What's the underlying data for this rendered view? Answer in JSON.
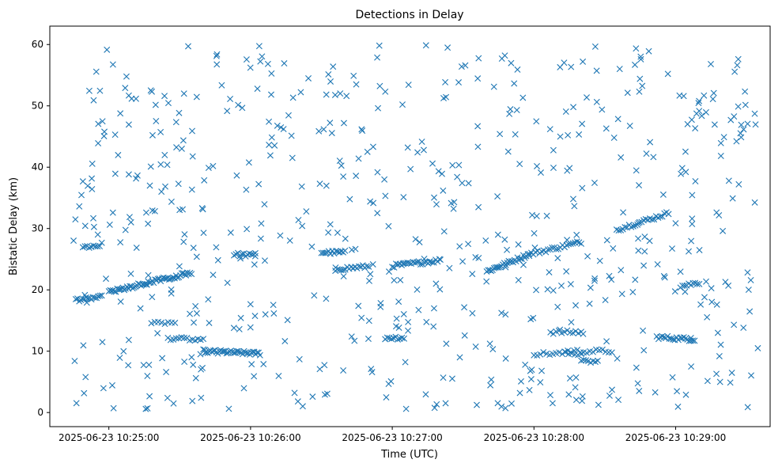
{
  "chart_data": {
    "type": "scatter",
    "title": "Detections in Delay",
    "xlabel": "Time (UTC)",
    "ylabel": "Bistatic Delay (km)",
    "marker": "x",
    "color": "#1f77b4",
    "grid": false,
    "xlim": [
      "2025-06-23 10:24:35",
      "2025-06-23 10:29:40"
    ],
    "ylim": [
      -2.3,
      63
    ],
    "x_ticks": [
      {
        "t": "2025-06-23 10:25:00",
        "label": "2025-06-23 10:25:00"
      },
      {
        "t": "2025-06-23 10:26:00",
        "label": "2025-06-23 10:26:00"
      },
      {
        "t": "2025-06-23 10:27:00",
        "label": "2025-06-23 10:27:00"
      },
      {
        "t": "2025-06-23 10:28:00",
        "label": "2025-06-23 10:28:00"
      },
      {
        "t": "2025-06-23 10:29:00",
        "label": "2025-06-23 10:29:00"
      }
    ],
    "y_ticks": [
      0,
      10,
      20,
      30,
      40,
      50,
      60
    ],
    "tracks": [
      {
        "t_start": "2025-06-23 10:24:46",
        "t_end": "2025-06-23 10:24:57",
        "y_start": 18.3,
        "y_end": 19.0,
        "count": 16
      },
      {
        "t_start": "2025-06-23 10:25:00",
        "t_end": "2025-06-23 10:25:35",
        "y_start": 19.6,
        "y_end": 22.8,
        "count": 60
      },
      {
        "t_start": "2025-06-23 10:24:49",
        "t_end": "2025-06-23 10:24:57",
        "y_start": 27.0,
        "y_end": 27.4,
        "count": 10
      },
      {
        "t_start": "2025-06-23 10:25:25",
        "t_end": "2025-06-23 10:25:40",
        "y_start": 12.0,
        "y_end": 12.0,
        "count": 14
      },
      {
        "t_start": "2025-06-23 10:25:40",
        "t_end": "2025-06-23 10:26:04",
        "y_start": 10.0,
        "y_end": 9.6,
        "count": 40
      },
      {
        "t_start": "2025-06-23 10:25:18",
        "t_end": "2025-06-23 10:25:28",
        "y_start": 14.7,
        "y_end": 14.7,
        "count": 8
      },
      {
        "t_start": "2025-06-23 10:25:53",
        "t_end": "2025-06-23 10:26:02",
        "y_start": 25.8,
        "y_end": 25.6,
        "count": 12
      },
      {
        "t_start": "2025-06-23 10:26:30",
        "t_end": "2025-06-23 10:26:40",
        "y_start": 26.1,
        "y_end": 26.1,
        "count": 14
      },
      {
        "t_start": "2025-06-23 10:26:36",
        "t_end": "2025-06-23 10:26:50",
        "y_start": 23.4,
        "y_end": 23.8,
        "count": 18
      },
      {
        "t_start": "2025-06-23 10:27:00",
        "t_end": "2025-06-23 10:27:20",
        "y_start": 23.9,
        "y_end": 24.8,
        "count": 26
      },
      {
        "t_start": "2025-06-23 10:26:57",
        "t_end": "2025-06-23 10:27:05",
        "y_start": 12.2,
        "y_end": 12.2,
        "count": 10
      },
      {
        "t_start": "2025-06-23 10:27:40",
        "t_end": "2025-06-23 10:27:58",
        "y_start": 23.0,
        "y_end": 25.8,
        "count": 30
      },
      {
        "t_start": "2025-06-23 10:27:58",
        "t_end": "2025-06-23 10:28:20",
        "y_start": 25.8,
        "y_end": 27.8,
        "count": 26
      },
      {
        "t_start": "2025-06-23 10:28:35",
        "t_end": "2025-06-23 10:28:57",
        "y_start": 29.8,
        "y_end": 32.5,
        "count": 26
      },
      {
        "t_start": "2025-06-23 10:28:00",
        "t_end": "2025-06-23 10:28:20",
        "y_start": 9.6,
        "y_end": 9.6,
        "count": 16
      },
      {
        "t_start": "2025-06-23 10:28:07",
        "t_end": "2025-06-23 10:28:20",
        "y_start": 13.1,
        "y_end": 13.1,
        "count": 12
      },
      {
        "t_start": "2025-06-23 10:28:13",
        "t_end": "2025-06-23 10:28:33",
        "y_start": 10.0,
        "y_end": 10.0,
        "count": 16
      },
      {
        "t_start": "2025-06-23 10:28:20",
        "t_end": "2025-06-23 10:28:27",
        "y_start": 8.3,
        "y_end": 8.3,
        "count": 8
      },
      {
        "t_start": "2025-06-23 10:28:52",
        "t_end": "2025-06-23 10:29:08",
        "y_start": 12.3,
        "y_end": 11.9,
        "count": 22
      },
      {
        "t_start": "2025-06-23 10:29:02",
        "t_end": "2025-06-23 10:29:10",
        "y_start": 20.6,
        "y_end": 21.2,
        "count": 10
      }
    ]
  }
}
